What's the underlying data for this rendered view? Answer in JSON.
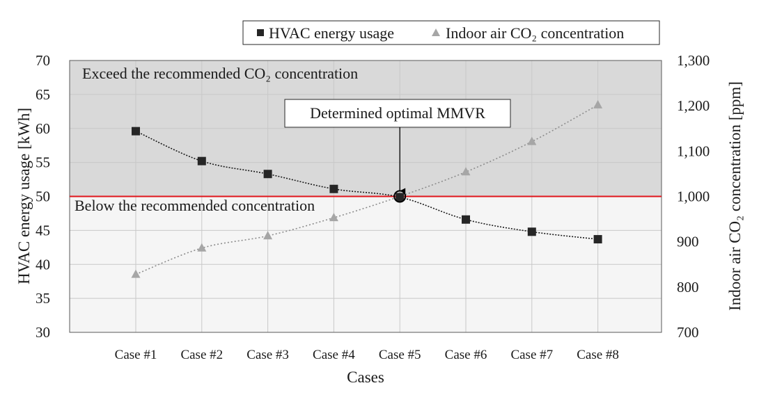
{
  "legend": {
    "energy_label": "HVAC energy usage",
    "co2_label": "Indoor air CO₂ concentration"
  },
  "annotations": {
    "region_above": "Exceed the recommended CO₂ concentration",
    "region_below": "Below the recommended concentration",
    "callout": "Determined optimal MMVR"
  },
  "colors": {
    "energy_series": "#262626",
    "co2_series": "#a6a6a6",
    "threshold_line": "#e0151b",
    "region_above_fill": "#d9d9d9",
    "region_below_fill": "#f5f5f5",
    "grid": "#c8c8c8"
  },
  "chart_data": {
    "type": "line",
    "categories": [
      "Case #1",
      "Case #2",
      "Case #3",
      "Case #4",
      "Case #5",
      "Case #6",
      "Case #7",
      "Case #8"
    ],
    "series": [
      {
        "name": "HVAC energy usage",
        "axis": "left",
        "marker": "square",
        "values": [
          59.6,
          55.2,
          53.3,
          51.1,
          49.9,
          46.6,
          44.8,
          43.7
        ]
      },
      {
        "name": "Indoor air CO₂ concentration",
        "axis": "right",
        "marker": "triangle",
        "values": [
          828,
          886,
          913,
          953,
          1000,
          1054,
          1121,
          1202
        ]
      }
    ],
    "xlabel": "Cases",
    "ylabel": "HVAC energy usage [kWh]",
    "y2label": "Indoor air CO₂ concentration [ppm]",
    "ylim": [
      30,
      70
    ],
    "y2lim": [
      700,
      1300
    ],
    "yticks": [
      "30",
      "35",
      "40",
      "45",
      "50",
      "55",
      "60",
      "65",
      "70"
    ],
    "y2ticks": [
      "700",
      "800",
      "900",
      "1,000",
      "1,100",
      "1,200",
      "1,300"
    ],
    "threshold": {
      "axis": "right",
      "value": 1000
    },
    "highlight_category": "Case #5",
    "grid": true,
    "legend_position": "top-right"
  }
}
